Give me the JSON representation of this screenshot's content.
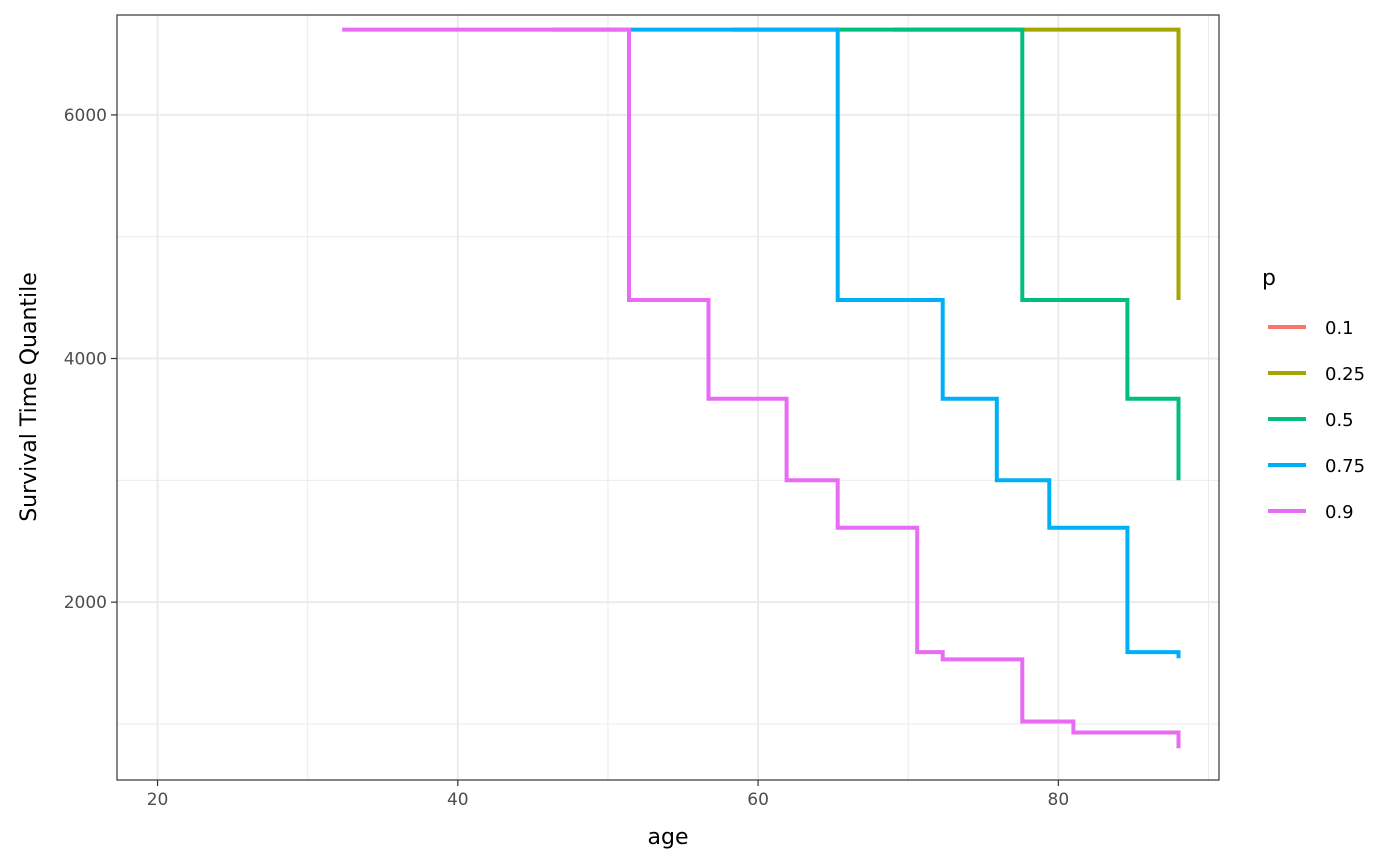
{
  "chart_data": {
    "type": "line",
    "step": true,
    "title": "",
    "xlabel": "age",
    "ylabel": "Survival Time Quantile",
    "xlim": [
      17.3,
      90.7
    ],
    "ylim": [
      540,
      6820
    ],
    "x_ticks": [
      {
        "value": 20,
        "label": "20"
      },
      {
        "value": 40,
        "label": "40"
      },
      {
        "value": 60,
        "label": "60"
      },
      {
        "value": 80,
        "label": "80"
      }
    ],
    "y_ticks": [
      {
        "value": 2000,
        "label": "2000"
      },
      {
        "value": 4000,
        "label": "4000"
      },
      {
        "value": 6000,
        "label": "6000"
      }
    ],
    "x_minor_grid": [
      30,
      50,
      70,
      90
    ],
    "y_minor_grid": [
      1000,
      3000,
      5000
    ],
    "grid": true,
    "theme": "bw",
    "legend": {
      "title": "p",
      "position": "right"
    },
    "series": [
      {
        "name": "0.1",
        "color": "#F8766D",
        "points": [
          [
            88.0,
            6700
          ]
        ]
      },
      {
        "name": "0.25",
        "color": "#A3A500",
        "points": [
          [
            69.0,
            6700
          ],
          [
            88.0,
            6700
          ],
          [
            88.0,
            4480
          ]
        ]
      },
      {
        "name": "0.5",
        "color": "#00BF7D",
        "points": [
          [
            58.3,
            6700
          ],
          [
            77.6,
            6700
          ],
          [
            77.6,
            4480
          ],
          [
            84.6,
            4480
          ],
          [
            84.6,
            3670
          ],
          [
            88.0,
            3670
          ],
          [
            88.0,
            3000
          ]
        ]
      },
      {
        "name": "0.75",
        "color": "#00B0F6",
        "points": [
          [
            46.3,
            6700
          ],
          [
            65.3,
            6700
          ],
          [
            65.3,
            4480
          ],
          [
            72.3,
            4480
          ],
          [
            72.3,
            3670
          ],
          [
            75.9,
            3670
          ],
          [
            75.9,
            3000
          ],
          [
            79.4,
            3000
          ],
          [
            79.4,
            2610
          ],
          [
            84.6,
            2610
          ],
          [
            84.6,
            1590
          ],
          [
            88.0,
            1590
          ],
          [
            88.0,
            1540
          ]
        ]
      },
      {
        "name": "0.9",
        "color": "#E76BF3",
        "points": [
          [
            32.3,
            6700
          ],
          [
            51.4,
            6700
          ],
          [
            51.4,
            4480
          ],
          [
            56.7,
            4480
          ],
          [
            56.7,
            3670
          ],
          [
            61.9,
            3670
          ],
          [
            61.9,
            3000
          ],
          [
            65.3,
            3000
          ],
          [
            65.3,
            2610
          ],
          [
            70.6,
            2610
          ],
          [
            70.6,
            1590
          ],
          [
            72.3,
            1590
          ],
          [
            72.3,
            1530
          ],
          [
            77.6,
            1530
          ],
          [
            77.6,
            1020
          ],
          [
            81.0,
            1020
          ],
          [
            81.0,
            930
          ],
          [
            88.0,
            930
          ],
          [
            88.0,
            800
          ]
        ]
      }
    ]
  }
}
